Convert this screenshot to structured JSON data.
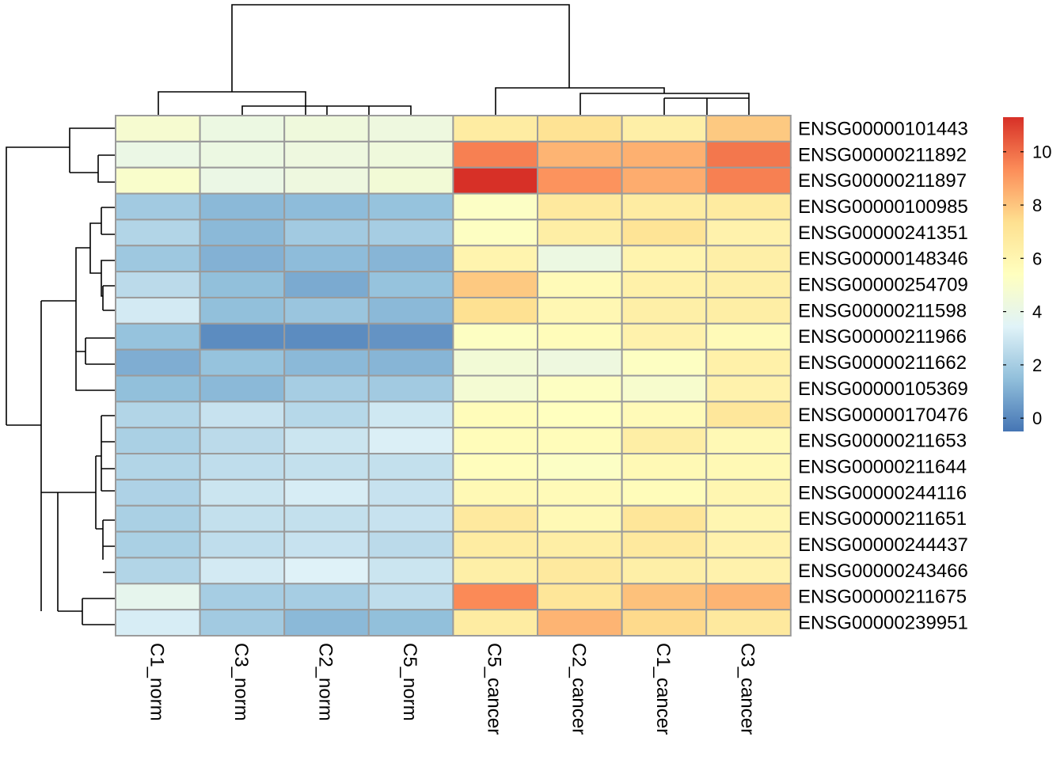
{
  "chart_data": {
    "type": "heatmap",
    "title": "",
    "columns": [
      "C1_norm",
      "C3_norm",
      "C2_norm",
      "C5_norm",
      "C5_cancer",
      "C2_cancer",
      "C1_cancer",
      "C3_cancer"
    ],
    "rows": [
      "ENSG00000101443",
      "ENSG00000211892",
      "ENSG00000211897",
      "ENSG00000100985",
      "ENSG00000241351",
      "ENSG00000148346",
      "ENSG00000254709",
      "ENSG00000211598",
      "ENSG00000211966",
      "ENSG00000211662",
      "ENSG00000105369",
      "ENSG00000170476",
      "ENSG00000211653",
      "ENSG00000211644",
      "ENSG00000244116",
      "ENSG00000211651",
      "ENSG00000244437",
      "ENSG00000243466",
      "ENSG00000211675",
      "ENSG00000239951"
    ],
    "values": [
      [
        4.8,
        4.2,
        4.4,
        4.3,
        6.6,
        7.2,
        6.4,
        7.9
      ],
      [
        4.1,
        4.2,
        4.3,
        4.4,
        9.6,
        8.4,
        8.5,
        9.8
      ],
      [
        5.0,
        4.1,
        4.3,
        4.6,
        11.3,
        9.2,
        8.6,
        9.6
      ],
      [
        1.9,
        1.3,
        1.4,
        1.6,
        5.2,
        6.8,
        6.6,
        6.7
      ],
      [
        2.3,
        1.3,
        1.9,
        2.0,
        5.3,
        6.5,
        7.1,
        6.2
      ],
      [
        1.8,
        1.1,
        1.4,
        1.2,
        6.1,
        4.2,
        6.1,
        6.4
      ],
      [
        2.5,
        1.5,
        0.9,
        1.6,
        7.9,
        5.7,
        6.3,
        6.4
      ],
      [
        3.1,
        1.5,
        1.7,
        1.3,
        7.3,
        5.9,
        6.4,
        6.5
      ],
      [
        1.6,
        0.1,
        0.1,
        0.3,
        5.3,
        5.6,
        6.2,
        5.7
      ],
      [
        1.0,
        1.6,
        1.3,
        1.2,
        4.6,
        4.3,
        5.3,
        6.3
      ],
      [
        1.5,
        1.3,
        2.0,
        1.9,
        4.7,
        5.3,
        4.9,
        6.2
      ],
      [
        2.3,
        2.8,
        2.4,
        3.0,
        5.6,
        5.4,
        5.7,
        6.9
      ],
      [
        2.1,
        2.5,
        2.9,
        3.3,
        5.6,
        5.6,
        6.5,
        5.8
      ],
      [
        2.3,
        2.6,
        2.7,
        2.7,
        5.5,
        5.2,
        5.8,
        5.8
      ],
      [
        2.2,
        2.9,
        3.2,
        2.8,
        5.8,
        5.7,
        5.6,
        6.0
      ],
      [
        2.1,
        2.7,
        2.7,
        2.8,
        6.8,
        5.8,
        7.0,
        6.0
      ],
      [
        2.1,
        2.6,
        2.8,
        2.5,
        6.6,
        6.5,
        6.8,
        6.2
      ],
      [
        2.3,
        3.1,
        3.4,
        2.9,
        6.4,
        6.8,
        6.4,
        6.2
      ],
      [
        3.8,
        2.0,
        2.0,
        2.6,
        9.4,
        7.0,
        8.1,
        8.4
      ],
      [
        3.2,
        1.9,
        1.3,
        1.5,
        6.6,
        8.4,
        7.5,
        6.8
      ]
    ],
    "legend": {
      "position": "right",
      "range": [
        -0.5,
        11.3
      ],
      "ticks": [
        0,
        2,
        4,
        6,
        8,
        10
      ],
      "colors": [
        "#4575b4",
        "#91bfdb",
        "#e0f3f8",
        "#ffffbf",
        "#fee090",
        "#fc8d59",
        "#d73027"
      ]
    },
    "cluster_rows": true,
    "cluster_cols": true
  }
}
